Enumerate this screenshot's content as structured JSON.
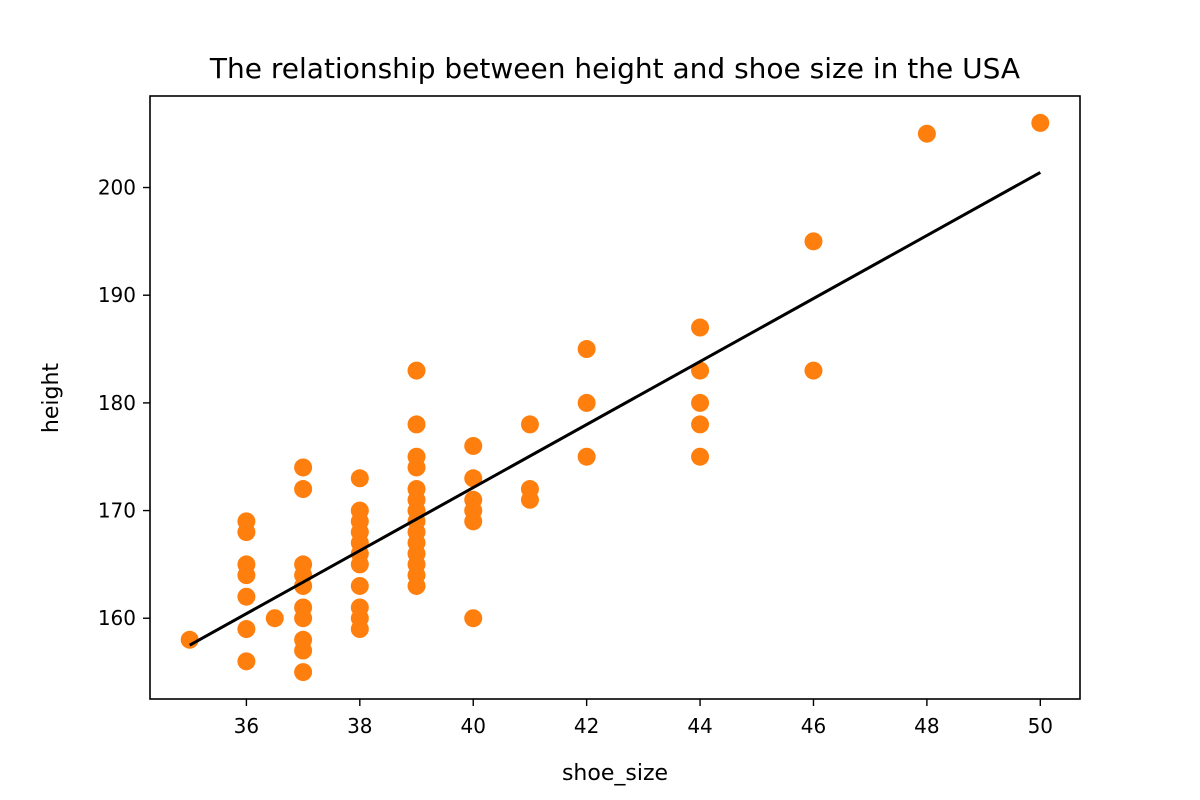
{
  "chart_data": {
    "type": "scatter",
    "title": "The relationship between height and shoe size in the USA",
    "xlabel": "shoe_size",
    "ylabel": "height",
    "xlim": [
      34.3,
      50.7
    ],
    "ylim": [
      152.5,
      208.5
    ],
    "xticks": [
      36,
      38,
      40,
      42,
      44,
      46,
      48,
      50
    ],
    "yticks": [
      160,
      170,
      180,
      190,
      200
    ],
    "grid": false,
    "legend": "none",
    "point_color": "#ff7f0e",
    "line_color": "#000000",
    "points": [
      {
        "x": 35,
        "y": 158
      },
      {
        "x": 36,
        "y": 169
      },
      {
        "x": 36,
        "y": 168
      },
      {
        "x": 36,
        "y": 165
      },
      {
        "x": 36,
        "y": 164
      },
      {
        "x": 36,
        "y": 162
      },
      {
        "x": 36,
        "y": 159
      },
      {
        "x": 36,
        "y": 156
      },
      {
        "x": 36.5,
        "y": 160
      },
      {
        "x": 37,
        "y": 174
      },
      {
        "x": 37,
        "y": 172
      },
      {
        "x": 37,
        "y": 165
      },
      {
        "x": 37,
        "y": 164
      },
      {
        "x": 37,
        "y": 163
      },
      {
        "x": 37,
        "y": 161
      },
      {
        "x": 37,
        "y": 160
      },
      {
        "x": 37,
        "y": 158
      },
      {
        "x": 37,
        "y": 157
      },
      {
        "x": 37,
        "y": 155
      },
      {
        "x": 38,
        "y": 173
      },
      {
        "x": 38,
        "y": 170
      },
      {
        "x": 38,
        "y": 169
      },
      {
        "x": 38,
        "y": 168
      },
      {
        "x": 38,
        "y": 167
      },
      {
        "x": 38,
        "y": 166
      },
      {
        "x": 38,
        "y": 165
      },
      {
        "x": 38,
        "y": 163
      },
      {
        "x": 38,
        "y": 161
      },
      {
        "x": 38,
        "y": 160
      },
      {
        "x": 38,
        "y": 159
      },
      {
        "x": 39,
        "y": 183
      },
      {
        "x": 39,
        "y": 178
      },
      {
        "x": 39,
        "y": 175
      },
      {
        "x": 39,
        "y": 174
      },
      {
        "x": 39,
        "y": 172
      },
      {
        "x": 39,
        "y": 171
      },
      {
        "x": 39,
        "y": 170
      },
      {
        "x": 39,
        "y": 169
      },
      {
        "x": 39,
        "y": 168
      },
      {
        "x": 39,
        "y": 167
      },
      {
        "x": 39,
        "y": 166
      },
      {
        "x": 39,
        "y": 165
      },
      {
        "x": 39,
        "y": 164
      },
      {
        "x": 39,
        "y": 163
      },
      {
        "x": 40,
        "y": 176
      },
      {
        "x": 40,
        "y": 173
      },
      {
        "x": 40,
        "y": 171
      },
      {
        "x": 40,
        "y": 170
      },
      {
        "x": 40,
        "y": 169
      },
      {
        "x": 40,
        "y": 160
      },
      {
        "x": 41,
        "y": 178
      },
      {
        "x": 41,
        "y": 172
      },
      {
        "x": 41,
        "y": 171
      },
      {
        "x": 42,
        "y": 185
      },
      {
        "x": 42,
        "y": 180
      },
      {
        "x": 42,
        "y": 175
      },
      {
        "x": 44,
        "y": 187
      },
      {
        "x": 44,
        "y": 183
      },
      {
        "x": 44,
        "y": 180
      },
      {
        "x": 44,
        "y": 178
      },
      {
        "x": 44,
        "y": 175
      },
      {
        "x": 46,
        "y": 195
      },
      {
        "x": 46,
        "y": 183
      },
      {
        "x": 48,
        "y": 205
      },
      {
        "x": 50,
        "y": 206
      }
    ],
    "regression_line": [
      {
        "x": 35,
        "y": 157.5
      },
      {
        "x": 50,
        "y": 201.4
      }
    ]
  }
}
